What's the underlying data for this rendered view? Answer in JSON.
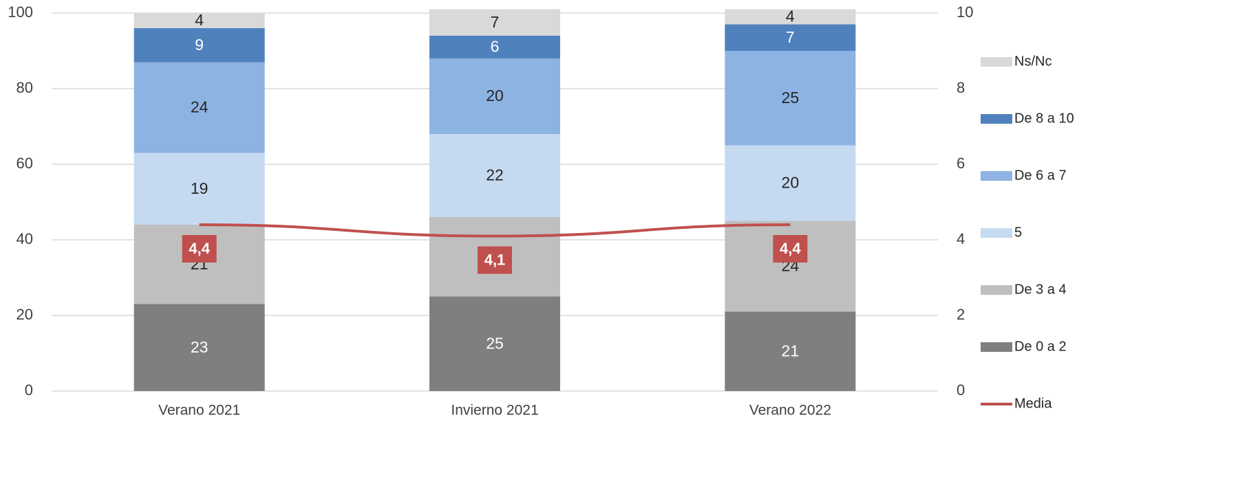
{
  "chart_data": {
    "type": "bar",
    "stacked": true,
    "categories": [
      "Verano 2021",
      "Invierno 2021",
      "Verano 2022"
    ],
    "series": [
      {
        "name": "De 0 a 2",
        "color": "#7f7f7f",
        "values": [
          23,
          25,
          21
        ]
      },
      {
        "name": "De 3 a 4",
        "color": "#bfbfbf",
        "values": [
          21,
          21,
          24
        ]
      },
      {
        "name": "5",
        "color": "#c5d9f1",
        "values": [
          19,
          22,
          20
        ]
      },
      {
        "name": "De 6 a 7",
        "color": "#8db3e2",
        "values": [
          24,
          20,
          25
        ]
      },
      {
        "name": "De 8 a 10",
        "color": "#4f81bd",
        "values": [
          9,
          6,
          7
        ]
      },
      {
        "name": "Ns/Nc",
        "color": "#d9d9d9",
        "values": [
          4,
          7,
          4
        ]
      },
      {
        "name": "Media",
        "type": "line",
        "axis": "y2",
        "color": "#c0504d",
        "values": [
          4.4,
          4.1,
          4.4
        ],
        "value_labels": [
          "4,4",
          "4,1",
          "4,4"
        ]
      }
    ],
    "ylim": [
      0,
      100
    ],
    "yticks": [
      0,
      20,
      40,
      60,
      80,
      100
    ],
    "y2lim": [
      0,
      10
    ],
    "y2ticks": [
      0,
      2,
      4,
      6,
      8,
      10
    ],
    "grid": true,
    "legend": "right"
  }
}
